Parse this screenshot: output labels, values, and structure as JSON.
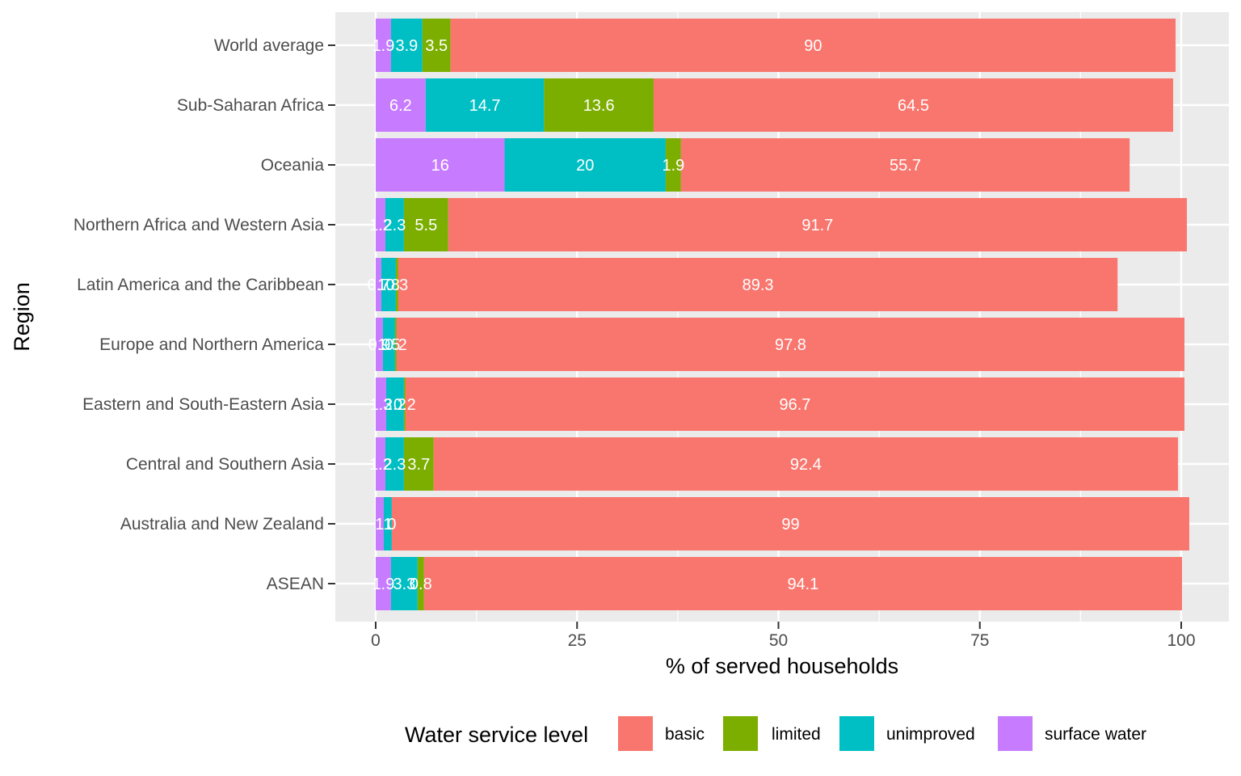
{
  "chart_data": {
    "type": "bar",
    "orientation": "horizontal",
    "stacked": true,
    "xlabel": "% of served households",
    "ylabel": "Region",
    "xlim": [
      -2.5,
      106
    ],
    "x_ticks": [
      0,
      25,
      50,
      75,
      100
    ],
    "grid": true,
    "legend": {
      "title": "Water service level",
      "position": "bottom",
      "entries": [
        "basic",
        "limited",
        "unimproved",
        "surface water"
      ]
    },
    "categories": [
      "World average",
      "Sub-Saharan Africa",
      "Oceania",
      "Northern Africa and Western Asia",
      "Latin America and the Caribbean",
      "Europe and Northern America",
      "Eastern and South-Eastern Asia",
      "Central and Southern Asia",
      "Australia and New Zealand",
      "ASEAN"
    ],
    "stack_order": [
      "surface water",
      "unimproved",
      "limited",
      "basic"
    ],
    "series": [
      {
        "name": "surface water",
        "color": "#C77CFF",
        "values": [
          1.9,
          6.2,
          16,
          1.2,
          0.7,
          0.9,
          1.3,
          1.2,
          1,
          1.9
        ]
      },
      {
        "name": "unimproved",
        "color": "#00BFC4",
        "values": [
          3.9,
          14.7,
          20,
          2.3,
          1.8,
          1.5,
          2.2,
          2.3,
          1,
          3.3
        ]
      },
      {
        "name": "limited",
        "color": "#7CAE00",
        "values": [
          3.5,
          13.6,
          1.9,
          5.5,
          0.3,
          0.2,
          0.2,
          3.7,
          0,
          0.8
        ]
      },
      {
        "name": "basic",
        "color": "#F8766D",
        "values": [
          90,
          64.5,
          55.7,
          91.7,
          89.3,
          97.8,
          96.7,
          92.4,
          99,
          94.1
        ]
      }
    ]
  }
}
